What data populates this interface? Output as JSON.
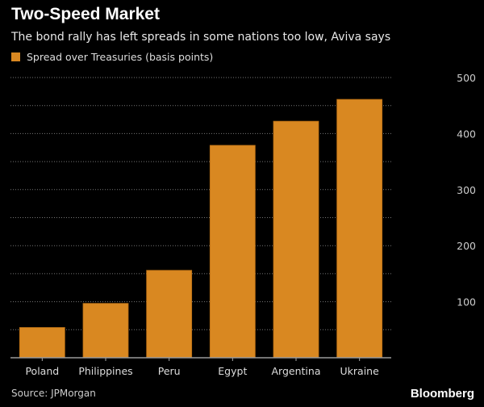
{
  "chart_data": {
    "type": "bar",
    "title": "Two-Speed Market",
    "subtitle": "The bond rally has left spreads in some nations too low, Aviva says",
    "categories": [
      "Poland",
      "Philippines",
      "Peru",
      "Egypt",
      "Argentina",
      "Ukraine"
    ],
    "series": [
      {
        "name": "Spread over Treasuries (basis points)",
        "values": [
          54,
          97,
          156,
          379,
          422,
          461
        ],
        "color": "#d98821"
      }
    ],
    "ylim": [
      0,
      500
    ],
    "yticks": [
      100,
      200,
      300,
      400,
      500
    ],
    "y_axis_side": "right",
    "grid": true,
    "legend": "top-left",
    "source": "Source: JPMorgan",
    "brand": "Bloomberg"
  }
}
